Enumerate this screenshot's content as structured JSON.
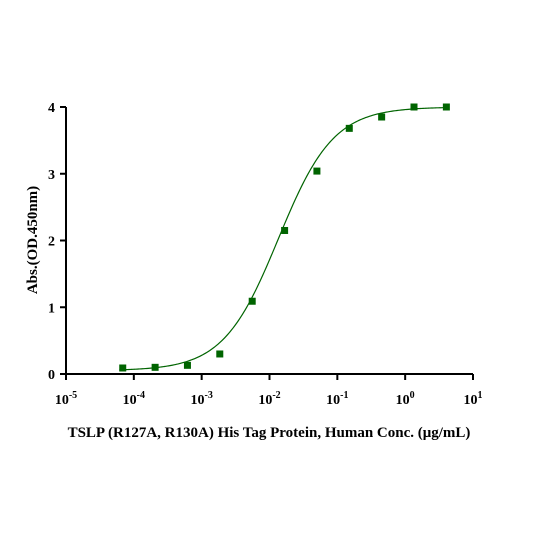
{
  "chart_data": {
    "type": "scatter",
    "xlabel": "TSLP (R127A, R130A) His Tag Protein, Human  Conc. (μg/mL)",
    "ylabel": "Abs.(OD.450nm)",
    "x_scale": "log",
    "xlim": [
      1e-05,
      10
    ],
    "ylim": [
      0,
      4
    ],
    "x_ticks": [
      {
        "value": 1e-05,
        "base": "10",
        "exp": "-5"
      },
      {
        "value": 0.0001,
        "base": "10",
        "exp": "-4"
      },
      {
        "value": 0.001,
        "base": "10",
        "exp": "-3"
      },
      {
        "value": 0.01,
        "base": "10",
        "exp": "-2"
      },
      {
        "value": 0.1,
        "base": "10",
        "exp": "-1"
      },
      {
        "value": 1,
        "base": "10",
        "exp": "0"
      },
      {
        "value": 10,
        "base": "10",
        "exp": "1"
      }
    ],
    "y_ticks": [
      "0",
      "1",
      "2",
      "3",
      "4"
    ],
    "grid": false,
    "series": [
      {
        "color": "#006400",
        "marker": "square",
        "fit": "four-parameter logistic",
        "points": [
          {
            "x": 6.86e-05,
            "y": 0.09
          },
          {
            "x": 0.000206,
            "y": 0.1
          },
          {
            "x": 0.000617,
            "y": 0.13
          },
          {
            "x": 0.00185,
            "y": 0.3
          },
          {
            "x": 0.00556,
            "y": 1.09
          },
          {
            "x": 0.0167,
            "y": 2.15
          },
          {
            "x": 0.05,
            "y": 3.04
          },
          {
            "x": 0.15,
            "y": 3.68
          },
          {
            "x": 0.45,
            "y": 3.85
          },
          {
            "x": 1.35,
            "y": 4.0
          },
          {
            "x": 4.05,
            "y": 4.0
          }
        ],
        "curve": {
          "bottom": 0.05,
          "top": 4.0,
          "ec50": 0.0135,
          "hill": 1.07
        }
      }
    ]
  }
}
